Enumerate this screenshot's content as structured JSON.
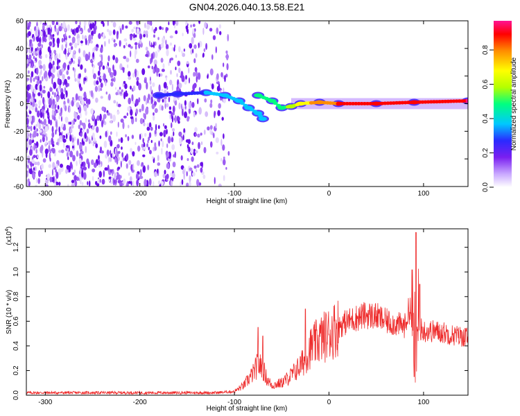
{
  "title": "GN04.2026.040.13.58.E21",
  "colors": {
    "snr_line": "#ee2a2a",
    "track_low": "#7a1ff0",
    "colormap": [
      "#ffffff",
      "#c9a8ff",
      "#7a1ff0",
      "#2a2aff",
      "#00c8ff",
      "#00ff80",
      "#b4ff00",
      "#ffff00",
      "#ff8c00",
      "#ff0000",
      "#ff1493"
    ]
  },
  "chart_data": [
    {
      "type": "heatmap",
      "name": "spectrogram",
      "xlabel": "Height of straight line (km)",
      "ylabel": "Frequency (Hz)",
      "xlim": [
        -320,
        147
      ],
      "ylim": [
        -60,
        60
      ],
      "xticks": [
        -300,
        -200,
        -100,
        0,
        100
      ],
      "yticks": [
        -60,
        -40,
        -20,
        0,
        20,
        40,
        60
      ],
      "track_points": [
        {
          "x": -180,
          "y": 6,
          "amp": 0.3
        },
        {
          "x": -160,
          "y": 7,
          "amp": 0.3
        },
        {
          "x": -130,
          "y": 8,
          "amp": 0.35
        },
        {
          "x": -110,
          "y": 6,
          "amp": 0.35
        },
        {
          "x": -95,
          "y": 2,
          "amp": 0.35
        },
        {
          "x": -85,
          "y": -3,
          "amp": 0.4
        },
        {
          "x": -75,
          "y": -7,
          "amp": 0.4
        },
        {
          "x": -70,
          "y": -11,
          "amp": 0.4
        },
        {
          "x": -75,
          "y": 6,
          "amp": 0.45
        },
        {
          "x": -60,
          "y": 2,
          "amp": 0.5
        },
        {
          "x": -50,
          "y": -3,
          "amp": 0.5
        },
        {
          "x": -40,
          "y": -2,
          "amp": 0.6
        },
        {
          "x": -30,
          "y": 0,
          "amp": 0.7
        },
        {
          "x": -10,
          "y": 1,
          "amp": 0.8
        },
        {
          "x": 10,
          "y": 0,
          "amp": 0.85
        },
        {
          "x": 50,
          "y": 0,
          "amp": 0.9
        },
        {
          "x": 90,
          "y": 1,
          "amp": 0.9
        },
        {
          "x": 147,
          "y": 2,
          "amp": 0.95
        }
      ],
      "colorbar": {
        "label": "Normalized spectral amplitude",
        "range": [
          0,
          0.97
        ],
        "ticks": [
          "0.0",
          "0.2",
          "0.4",
          "0.6",
          "0.8"
        ],
        "tick_values": [
          0.0,
          0.2,
          0.4,
          0.6,
          0.8
        ]
      }
    },
    {
      "type": "line",
      "name": "snr",
      "xlabel": "Height of straight line (km)",
      "ylabel": "SNR (10 * v/v)",
      "y_multiplier": "(x10",
      "y_multiplier_exp": "4",
      "y_multiplier_close": ")",
      "xlim": [
        -320,
        147
      ],
      "ylim": [
        0,
        1.35
      ],
      "xticks": [
        -300,
        -200,
        -100,
        0,
        100
      ],
      "yticks": [
        "0.0",
        "0.2",
        "0.4",
        "0.6",
        "0.8",
        "1.0",
        "1.2"
      ],
      "ytick_values": [
        0.0,
        0.2,
        0.4,
        0.6,
        0.8,
        1.0,
        1.2
      ],
      "series": [
        {
          "name": "SNR",
          "x": [
            -320,
            -200,
            -120,
            -100,
            -90,
            -80,
            -75,
            -70,
            -65,
            -60,
            -50,
            -40,
            -30,
            -25,
            -20,
            -10,
            0,
            10,
            20,
            30,
            40,
            50,
            60,
            70,
            80,
            85,
            90,
            92,
            95,
            100,
            110,
            120,
            130,
            147
          ],
          "y": [
            0.02,
            0.02,
            0.02,
            0.03,
            0.08,
            0.18,
            0.25,
            0.22,
            0.12,
            0.08,
            0.1,
            0.16,
            0.24,
            0.3,
            0.38,
            0.45,
            0.5,
            0.56,
            0.6,
            0.63,
            0.65,
            0.64,
            0.6,
            0.58,
            0.56,
            0.7,
            0.6,
            0.45,
            0.55,
            0.52,
            0.52,
            0.51,
            0.49,
            0.47
          ],
          "spikes": [
            {
              "x": -75,
              "y": 0.55
            },
            {
              "x": -70,
              "y": 0.48
            },
            {
              "x": -25,
              "y": 0.7
            },
            {
              "x": 88,
              "y": 1.02
            },
            {
              "x": 92,
              "y": 1.32
            },
            {
              "x": 96,
              "y": 0.9
            }
          ]
        }
      ]
    }
  ]
}
